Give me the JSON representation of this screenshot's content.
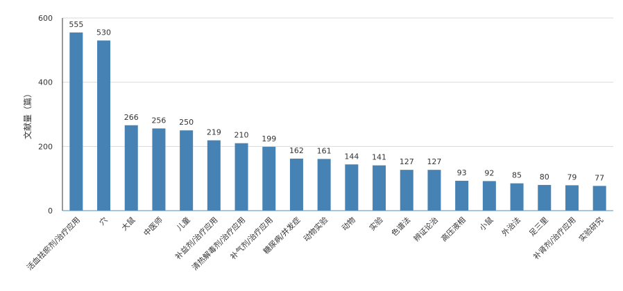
{
  "chart_data": {
    "type": "bar",
    "title": "",
    "xlabel": "",
    "ylabel": "文献量（篇）",
    "ylim": [
      0,
      600
    ],
    "yticks": [
      0,
      200,
      400,
      600
    ],
    "grid": true,
    "bar_color": "#4682b4",
    "categories": [
      "活血祛瘀剂/治疗应用",
      "穴",
      "大鼠",
      "中医师",
      "儿童",
      "补益剂/治疗应用",
      "清热解毒剂/治疗应用",
      "补气剂/治疗应用",
      "糖尿病/并发症",
      "动物实验",
      "动物",
      "实验",
      "色谱法",
      "辨证论治",
      "高压液相",
      "小鼠",
      "外治法",
      "足三里",
      "补肾剂/治疗应用",
      "实验研究"
    ],
    "values": [
      555,
      530,
      266,
      256,
      250,
      219,
      210,
      199,
      162,
      161,
      144,
      141,
      127,
      127,
      93,
      92,
      85,
      80,
      79,
      77
    ]
  }
}
